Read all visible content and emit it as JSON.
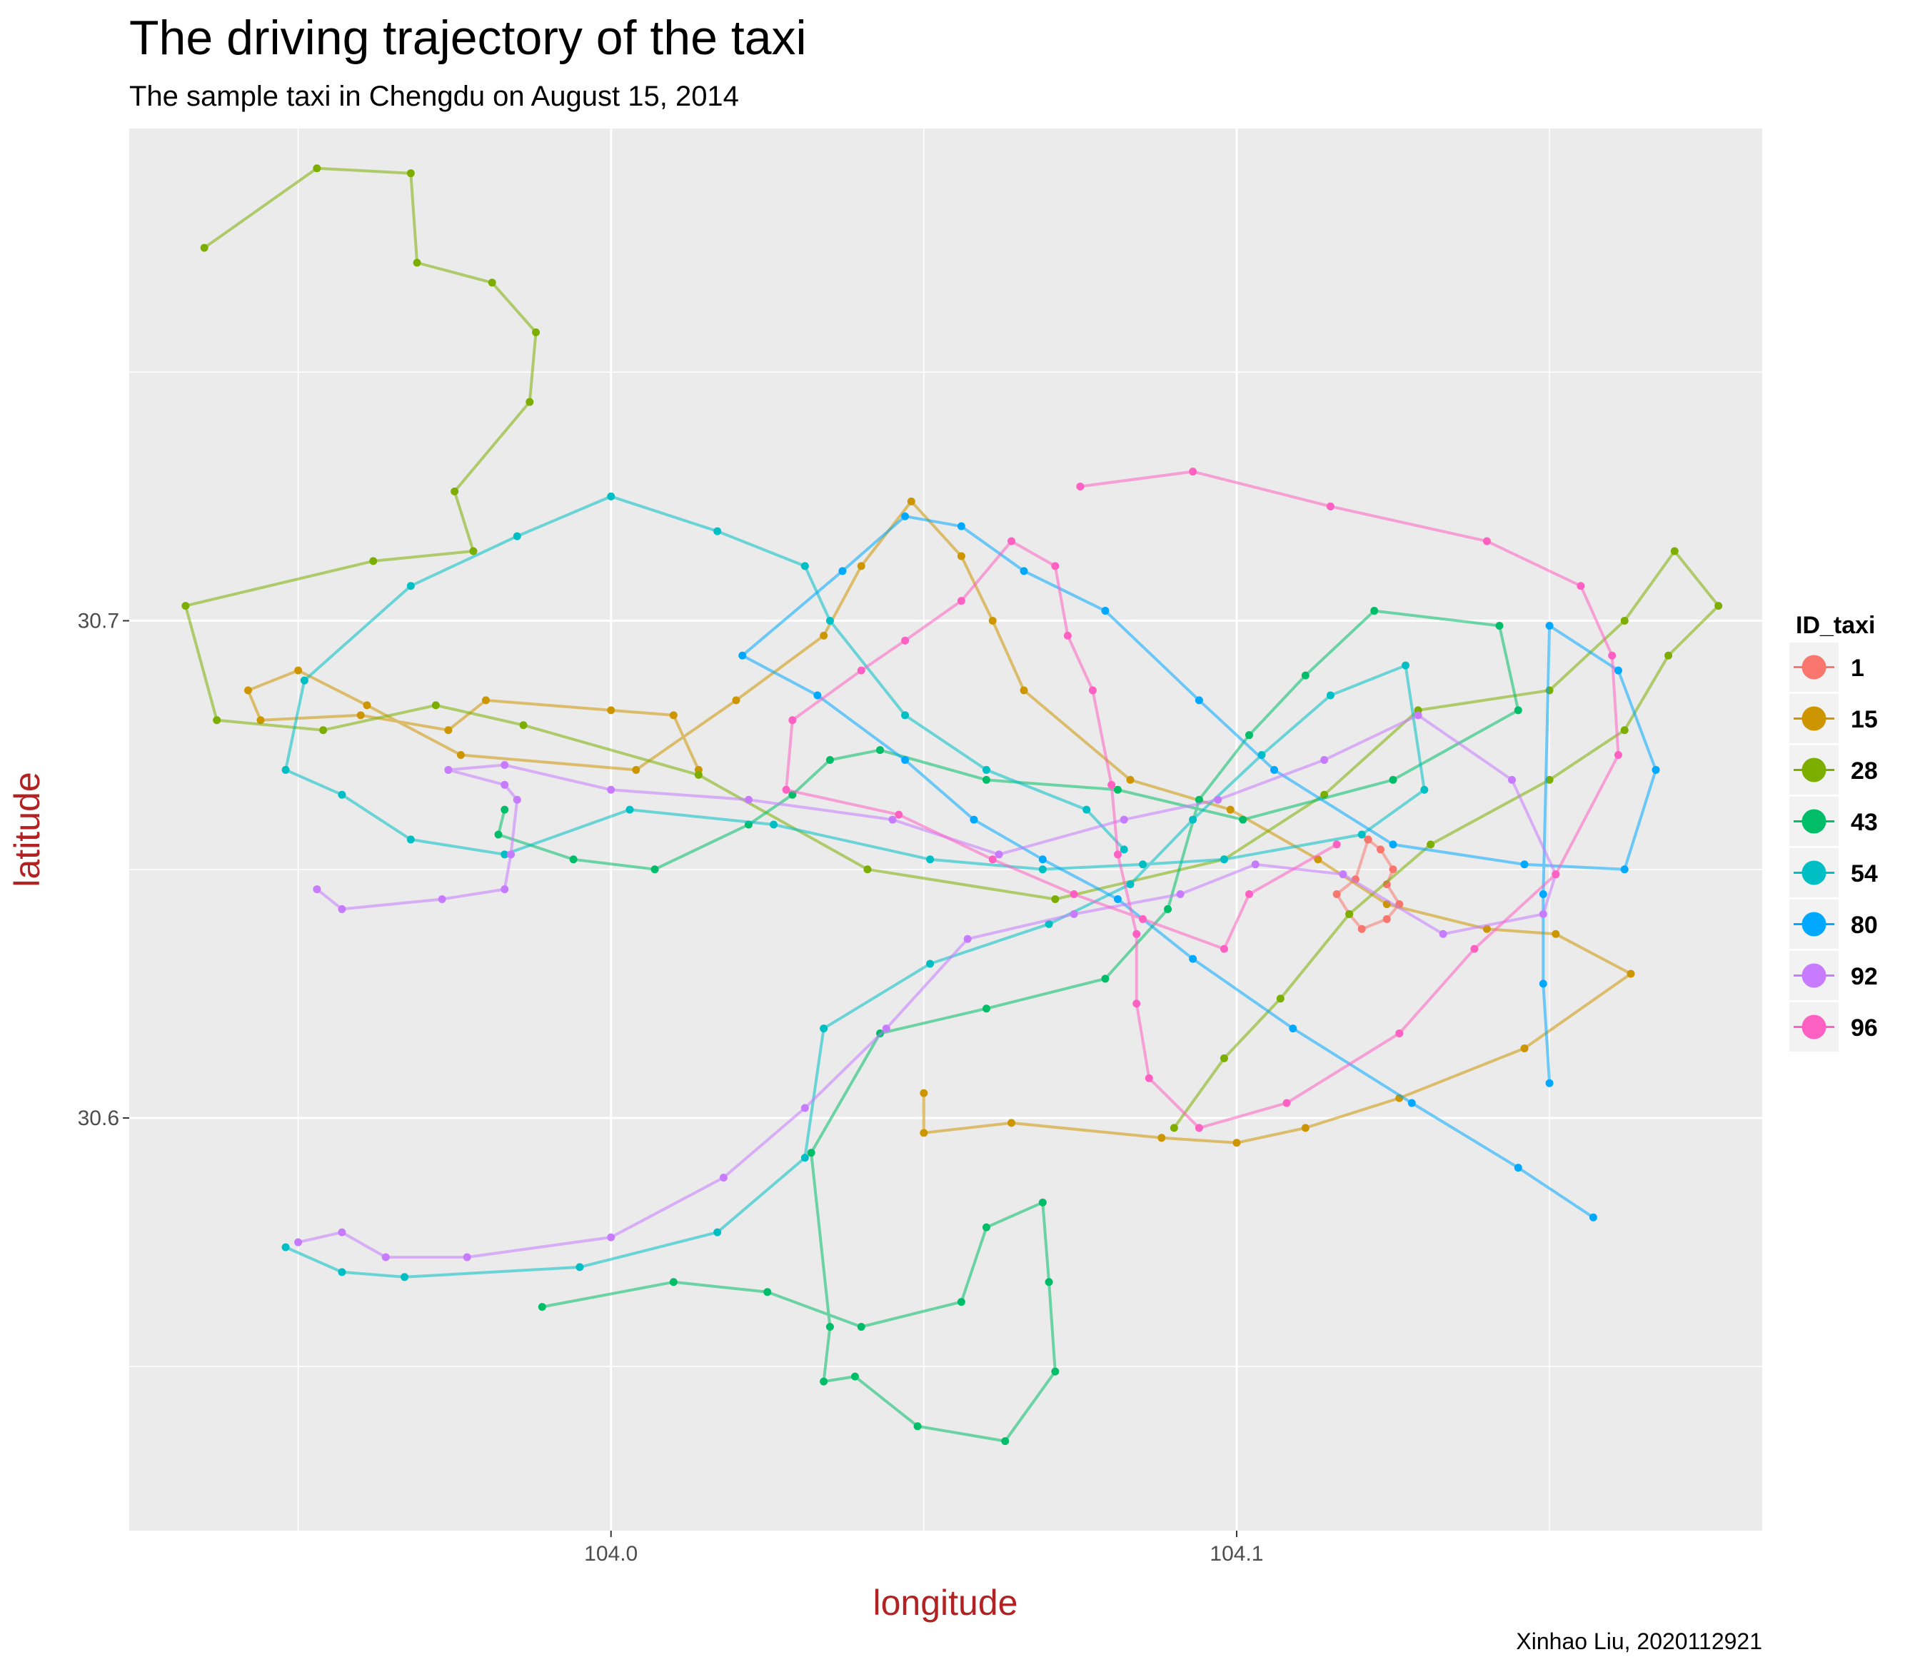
{
  "chart_data": {
    "type": "line",
    "title": "The driving trajectory of the taxi",
    "subtitle": "The sample taxi in Chengdu on August 15, 2014",
    "xlabel": "longitude",
    "ylabel": "latitude",
    "caption": "Xinhao Liu, 2020112921",
    "xlim": [
      103.923,
      104.184
    ],
    "ylim": [
      30.517,
      30.799
    ],
    "x_ticks": [
      {
        "value": 104.0,
        "label": "104.0"
      },
      {
        "value": 104.1,
        "label": "104.1"
      }
    ],
    "y_ticks": [
      {
        "value": 30.6,
        "label": "30.6"
      },
      {
        "value": 30.7,
        "label": "30.7"
      }
    ],
    "x_minor": [
      103.95,
      104.05,
      104.15
    ],
    "y_minor": [
      30.55,
      30.65,
      30.75
    ],
    "grid": true,
    "legend": {
      "title": "ID_taxi",
      "position": "right"
    },
    "series": [
      {
        "name": "1",
        "color": "#F8766D",
        "points": [
          [
            104.121,
            30.656
          ],
          [
            104.123,
            30.654
          ],
          [
            104.125,
            30.65
          ],
          [
            104.124,
            30.647
          ],
          [
            104.126,
            30.643
          ],
          [
            104.124,
            30.64
          ],
          [
            104.12,
            30.638
          ],
          [
            104.118,
            30.641
          ],
          [
            104.116,
            30.645
          ],
          [
            104.119,
            30.648
          ],
          [
            104.121,
            30.656
          ]
        ]
      },
      {
        "name": "15",
        "color": "#CD9600",
        "points": [
          [
            104.014,
            30.67
          ],
          [
            104.01,
            30.681
          ],
          [
            104.0,
            30.682
          ],
          [
            103.98,
            30.684
          ],
          [
            103.974,
            30.678
          ],
          [
            103.96,
            30.681
          ],
          [
            103.944,
            30.68
          ],
          [
            103.942,
            30.686
          ],
          [
            103.95,
            30.69
          ],
          [
            103.961,
            30.683
          ],
          [
            103.976,
            30.673
          ],
          [
            104.004,
            30.67
          ],
          [
            104.02,
            30.684
          ],
          [
            104.034,
            30.697
          ],
          [
            104.04,
            30.711
          ],
          [
            104.048,
            30.724
          ],
          [
            104.056,
            30.713
          ],
          [
            104.061,
            30.7
          ],
          [
            104.066,
            30.686
          ],
          [
            104.083,
            30.668
          ],
          [
            104.099,
            30.662
          ],
          [
            104.113,
            30.652
          ],
          [
            104.124,
            30.643
          ],
          [
            104.14,
            30.638
          ],
          [
            104.151,
            30.637
          ],
          [
            104.163,
            30.629
          ],
          [
            104.146,
            30.614
          ],
          [
            104.126,
            30.604
          ],
          [
            104.111,
            30.598
          ],
          [
            104.1,
            30.595
          ],
          [
            104.088,
            30.596
          ],
          [
            104.064,
            30.599
          ],
          [
            104.05,
            30.597
          ],
          [
            104.05,
            30.605
          ]
        ]
      },
      {
        "name": "28",
        "color": "#7CAE00",
        "points": [
          [
            103.935,
            30.775
          ],
          [
            103.953,
            30.791
          ],
          [
            103.968,
            30.79
          ],
          [
            103.969,
            30.772
          ],
          [
            103.981,
            30.768
          ],
          [
            103.988,
            30.758
          ],
          [
            103.987,
            30.744
          ],
          [
            103.975,
            30.726
          ],
          [
            103.978,
            30.714
          ],
          [
            103.962,
            30.712
          ],
          [
            103.932,
            30.703
          ],
          [
            103.937,
            30.68
          ],
          [
            103.954,
            30.678
          ],
          [
            103.972,
            30.683
          ],
          [
            103.986,
            30.679
          ],
          [
            104.014,
            30.669
          ],
          [
            104.041,
            30.65
          ],
          [
            104.071,
            30.644
          ],
          [
            104.098,
            30.652
          ],
          [
            104.114,
            30.665
          ],
          [
            104.129,
            30.682
          ],
          [
            104.15,
            30.686
          ],
          [
            104.162,
            30.7
          ],
          [
            104.17,
            30.714
          ],
          [
            104.177,
            30.703
          ],
          [
            104.169,
            30.693
          ],
          [
            104.162,
            30.678
          ],
          [
            104.15,
            30.668
          ],
          [
            104.131,
            30.655
          ],
          [
            104.118,
            30.641
          ],
          [
            104.107,
            30.624
          ],
          [
            104.098,
            30.612
          ],
          [
            104.09,
            30.598
          ]
        ]
      },
      {
        "name": "43",
        "color": "#00BE67",
        "points": [
          [
            103.989,
            30.562
          ],
          [
            104.01,
            30.567
          ],
          [
            104.025,
            30.565
          ],
          [
            104.04,
            30.558
          ],
          [
            104.056,
            30.563
          ],
          [
            104.06,
            30.578
          ],
          [
            104.069,
            30.583
          ],
          [
            104.07,
            30.567
          ],
          [
            104.071,
            30.549
          ],
          [
            104.063,
            30.535
          ],
          [
            104.049,
            30.538
          ],
          [
            104.039,
            30.548
          ],
          [
            104.034,
            30.547
          ],
          [
            104.035,
            30.558
          ],
          [
            104.032,
            30.593
          ],
          [
            104.043,
            30.617
          ],
          [
            104.06,
            30.622
          ],
          [
            104.079,
            30.628
          ],
          [
            104.089,
            30.642
          ],
          [
            104.094,
            30.664
          ],
          [
            104.102,
            30.677
          ],
          [
            104.111,
            30.689
          ],
          [
            104.122,
            30.702
          ],
          [
            104.142,
            30.699
          ],
          [
            104.145,
            30.682
          ],
          [
            104.125,
            30.668
          ],
          [
            104.101,
            30.66
          ],
          [
            104.081,
            30.666
          ],
          [
            104.06,
            30.668
          ],
          [
            104.043,
            30.674
          ],
          [
            104.035,
            30.672
          ],
          [
            104.029,
            30.665
          ],
          [
            104.022,
            30.659
          ],
          [
            104.007,
            30.65
          ],
          [
            103.994,
            30.652
          ],
          [
            103.982,
            30.657
          ],
          [
            103.983,
            30.662
          ]
        ]
      },
      {
        "name": "54",
        "color": "#00BFC4",
        "points": [
          [
            103.948,
            30.574
          ],
          [
            103.957,
            30.569
          ],
          [
            103.967,
            30.568
          ],
          [
            103.995,
            30.57
          ],
          [
            104.017,
            30.577
          ],
          [
            104.031,
            30.592
          ],
          [
            104.034,
            30.618
          ],
          [
            104.051,
            30.631
          ],
          [
            104.07,
            30.639
          ],
          [
            104.083,
            30.647
          ],
          [
            104.093,
            30.66
          ],
          [
            104.104,
            30.673
          ],
          [
            104.115,
            30.685
          ],
          [
            104.127,
            30.691
          ],
          [
            104.13,
            30.666
          ],
          [
            104.12,
            30.657
          ],
          [
            104.098,
            30.652
          ],
          [
            104.085,
            30.651
          ],
          [
            104.069,
            30.65
          ],
          [
            104.051,
            30.652
          ],
          [
            104.026,
            30.659
          ],
          [
            104.003,
            30.662
          ],
          [
            103.983,
            30.653
          ],
          [
            103.968,
            30.656
          ],
          [
            103.957,
            30.665
          ],
          [
            103.948,
            30.67
          ],
          [
            103.951,
            30.688
          ],
          [
            103.968,
            30.707
          ],
          [
            103.985,
            30.717
          ],
          [
            104.0,
            30.725
          ],
          [
            104.017,
            30.718
          ],
          [
            104.031,
            30.711
          ],
          [
            104.035,
            30.7
          ],
          [
            104.047,
            30.681
          ],
          [
            104.06,
            30.67
          ],
          [
            104.076,
            30.662
          ],
          [
            104.082,
            30.654
          ]
        ]
      },
      {
        "name": "80",
        "color": "#00A9FF",
        "points": [
          [
            104.157,
            30.58
          ],
          [
            104.145,
            30.59
          ],
          [
            104.128,
            30.603
          ],
          [
            104.109,
            30.618
          ],
          [
            104.093,
            30.632
          ],
          [
            104.081,
            30.644
          ],
          [
            104.069,
            30.652
          ],
          [
            104.058,
            30.66
          ],
          [
            104.047,
            30.672
          ],
          [
            104.033,
            30.685
          ],
          [
            104.021,
            30.693
          ],
          [
            104.037,
            30.71
          ],
          [
            104.047,
            30.721
          ],
          [
            104.056,
            30.719
          ],
          [
            104.066,
            30.71
          ],
          [
            104.079,
            30.702
          ],
          [
            104.094,
            30.684
          ],
          [
            104.106,
            30.67
          ],
          [
            104.125,
            30.655
          ],
          [
            104.146,
            30.651
          ],
          [
            104.162,
            30.65
          ],
          [
            104.167,
            30.67
          ],
          [
            104.161,
            30.69
          ],
          [
            104.15,
            30.699
          ],
          [
            104.149,
            30.645
          ],
          [
            104.149,
            30.627
          ],
          [
            104.15,
            30.607
          ]
        ]
      },
      {
        "name": "92",
        "color": "#C77CFF",
        "points": [
          [
            103.953,
            30.646
          ],
          [
            103.957,
            30.642
          ],
          [
            103.973,
            30.644
          ],
          [
            103.983,
            30.646
          ],
          [
            103.984,
            30.653
          ],
          [
            103.985,
            30.664
          ],
          [
            103.983,
            30.667
          ],
          [
            103.974,
            30.67
          ],
          [
            103.983,
            30.671
          ],
          [
            104.0,
            30.666
          ],
          [
            104.022,
            30.664
          ],
          [
            104.045,
            30.66
          ],
          [
            104.062,
            30.653
          ],
          [
            104.082,
            30.66
          ],
          [
            104.097,
            30.664
          ],
          [
            104.114,
            30.672
          ],
          [
            104.129,
            30.681
          ],
          [
            104.144,
            30.668
          ],
          [
            104.151,
            30.649
          ],
          [
            104.149,
            30.641
          ],
          [
            104.133,
            30.637
          ],
          [
            104.117,
            30.649
          ],
          [
            104.103,
            30.651
          ],
          [
            104.091,
            30.645
          ],
          [
            104.074,
            30.641
          ],
          [
            104.057,
            30.636
          ],
          [
            104.044,
            30.618
          ],
          [
            104.031,
            30.602
          ],
          [
            104.018,
            30.588
          ],
          [
            104.0,
            30.576
          ],
          [
            103.977,
            30.572
          ],
          [
            103.964,
            30.572
          ],
          [
            103.957,
            30.577
          ],
          [
            103.95,
            30.575
          ]
        ]
      },
      {
        "name": "96",
        "color": "#FF61C3",
        "points": [
          [
            104.075,
            30.727
          ],
          [
            104.093,
            30.73
          ],
          [
            104.115,
            30.723
          ],
          [
            104.14,
            30.716
          ],
          [
            104.155,
            30.707
          ],
          [
            104.16,
            30.693
          ],
          [
            104.161,
            30.673
          ],
          [
            104.151,
            30.649
          ],
          [
            104.138,
            30.634
          ],
          [
            104.126,
            30.617
          ],
          [
            104.108,
            30.603
          ],
          [
            104.094,
            30.598
          ],
          [
            104.086,
            30.608
          ],
          [
            104.084,
            30.623
          ],
          [
            104.084,
            30.637
          ],
          [
            104.081,
            30.653
          ],
          [
            104.08,
            30.667
          ],
          [
            104.077,
            30.686
          ],
          [
            104.073,
            30.697
          ],
          [
            104.071,
            30.711
          ],
          [
            104.064,
            30.716
          ],
          [
            104.056,
            30.704
          ],
          [
            104.047,
            30.696
          ],
          [
            104.04,
            30.69
          ],
          [
            104.029,
            30.68
          ],
          [
            104.028,
            30.666
          ],
          [
            104.046,
            30.661
          ],
          [
            104.061,
            30.652
          ],
          [
            104.074,
            30.645
          ],
          [
            104.085,
            30.64
          ],
          [
            104.098,
            30.634
          ],
          [
            104.102,
            30.645
          ],
          [
            104.116,
            30.655
          ]
        ]
      }
    ]
  }
}
